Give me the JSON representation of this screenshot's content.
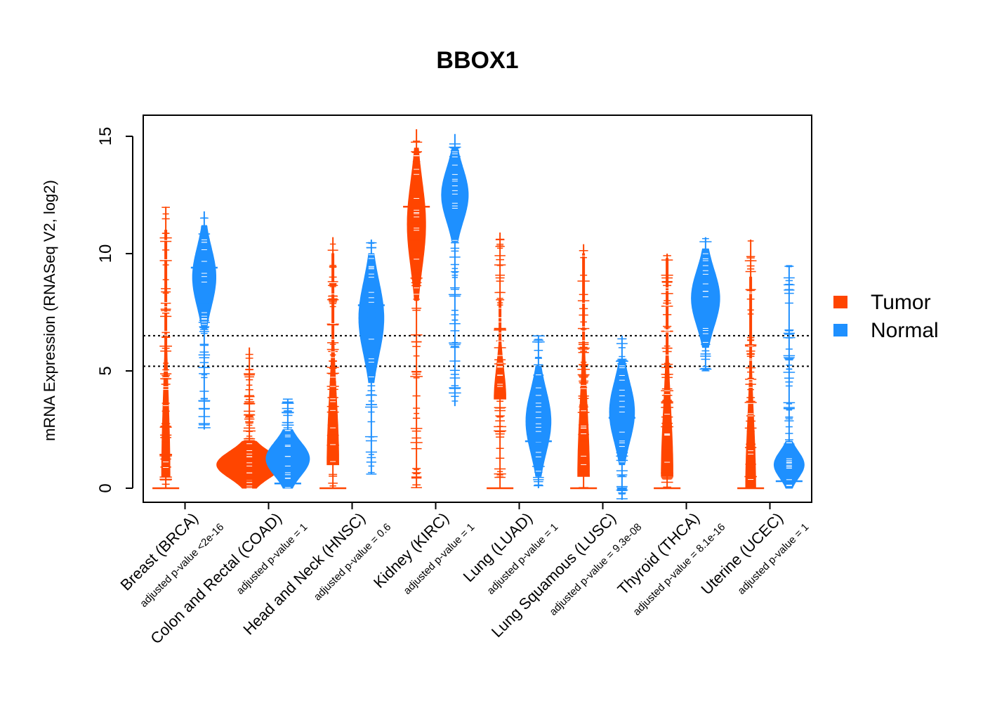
{
  "chart_data": {
    "type": "beanplot",
    "title": "BBOX1",
    "ylabel": "mRNA Expression (RNASeq V2, log2)",
    "xlabel": "",
    "ylim": [
      -0.6,
      15.9
    ],
    "yticks": [
      0,
      5,
      10,
      15
    ],
    "reference_lines": [
      5.2,
      6.5
    ],
    "grid": false,
    "legend_position": "right",
    "series": [
      {
        "name": "Tumor",
        "color": "#FF4500"
      },
      {
        "name": "Normal",
        "color": "#1E90FF"
      }
    ],
    "categories": [
      {
        "label": "Breast (BRCA)",
        "pvalue": "adjusted p-value <2e-16",
        "tumor": {
          "min": 0,
          "max": 12.0,
          "bulk_lo": 0.5,
          "bulk_hi": 11,
          "median": 0,
          "width": 0.1
        },
        "normal": {
          "min": 2.5,
          "max": 11.8,
          "bulk_lo": 6.8,
          "bulk_hi": 11.2,
          "median": 9.4,
          "width": 0.28
        }
      },
      {
        "label": "Colon and Rectal (COAD)",
        "pvalue": "adjusted p-value = 1",
        "tumor": {
          "min": 0,
          "max": 6.0,
          "bulk_lo": 0,
          "bulk_hi": 2.0,
          "median": 0.3,
          "width": 0.78
        },
        "normal": {
          "min": 0,
          "max": 3.8,
          "bulk_lo": 0,
          "bulk_hi": 2.5,
          "median": 0.2,
          "width": 0.52
        }
      },
      {
        "label": "Head and Neck (HNSC)",
        "pvalue": "adjusted p-value = 0.6",
        "tumor": {
          "min": 0,
          "max": 10.7,
          "bulk_lo": 1.0,
          "bulk_hi": 10,
          "median": 0,
          "width": 0.14
        },
        "normal": {
          "min": 0.6,
          "max": 10.6,
          "bulk_lo": 4.5,
          "bulk_hi": 10,
          "median": 7.8,
          "width": 0.3
        }
      },
      {
        "label": "Kidney (KIRC)",
        "pvalue": "adjusted p-value = 1",
        "tumor": {
          "min": 0,
          "max": 15.3,
          "bulk_lo": 8.0,
          "bulk_hi": 14.5,
          "median": 12.0,
          "width": 0.22
        },
        "normal": {
          "min": 3.5,
          "max": 15.1,
          "bulk_lo": 10.5,
          "bulk_hi": 14.5,
          "median": 12.6,
          "width": 0.32
        }
      },
      {
        "label": "Lung (LUAD)",
        "pvalue": "adjusted p-value = 1",
        "tumor": {
          "min": 0,
          "max": 10.9,
          "bulk_lo": 3.8,
          "bulk_hi": 8.0,
          "median": 0,
          "width": 0.14
        },
        "normal": {
          "min": 0,
          "max": 6.5,
          "bulk_lo": 0.5,
          "bulk_hi": 5.2,
          "median": 2.0,
          "width": 0.3
        }
      },
      {
        "label": "Lung Squamous (LUSC)",
        "pvalue": "adjusted p-value = 9.3e-08",
        "tumor": {
          "min": 0,
          "max": 10.4,
          "bulk_lo": 0.5,
          "bulk_hi": 10,
          "median": 0,
          "width": 0.14
        },
        "normal": {
          "min": -0.5,
          "max": 6.5,
          "bulk_lo": 1.0,
          "bulk_hi": 5.5,
          "median": 3.0,
          "width": 0.3
        }
      },
      {
        "label": "Thyroid (THCA)",
        "pvalue": "adjusted p-value = 8.1e-16",
        "tumor": {
          "min": 0,
          "max": 10.0,
          "bulk_lo": 0.5,
          "bulk_hi": 9.8,
          "median": 0,
          "width": 0.14
        },
        "normal": {
          "min": 5.0,
          "max": 10.7,
          "bulk_lo": 6.0,
          "bulk_hi": 10.2,
          "median": 8.0,
          "width": 0.34
        }
      },
      {
        "label": "Uterine (UCEC)",
        "pvalue": "adjusted p-value = 1",
        "tumor": {
          "min": 0,
          "max": 10.6,
          "bulk_lo": 0,
          "bulk_hi": 9.0,
          "median": 0,
          "width": 0.12
        },
        "normal": {
          "min": 0,
          "max": 9.5,
          "bulk_lo": 0,
          "bulk_hi": 2.0,
          "median": 0.3,
          "width": 0.36
        }
      }
    ]
  }
}
